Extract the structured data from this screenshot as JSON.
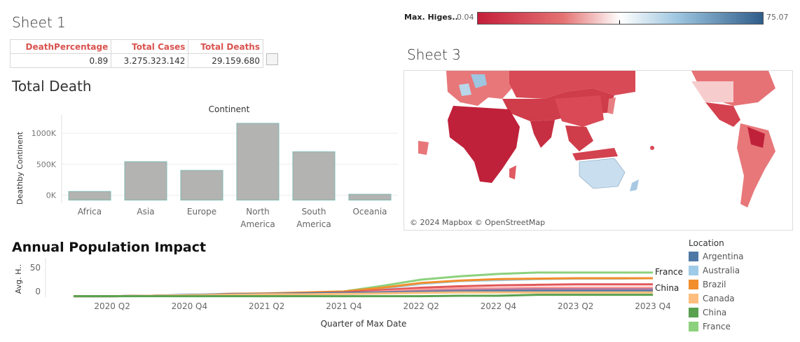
{
  "sheet1": {
    "title": "Sheet 1",
    "headers": [
      "DeathPercentage",
      "Total Cases",
      "Total Deaths"
    ],
    "values": [
      "0.89",
      "3.275.323.142",
      "29.159.680"
    ]
  },
  "colorbar": {
    "label": "Max. Higes..",
    "min_label": "0.04",
    "max_label": "75.07",
    "low_color": "#c41e3a",
    "mid_color": "#ffffff",
    "high_color": "#2f5d8a"
  },
  "sheet3": {
    "title": "Sheet 3",
    "credit": "© 2024 Mapbox © OpenStreetMap"
  },
  "total_death": {
    "title": "Total Death"
  },
  "annual": {
    "title": "Annual Population Impact",
    "legend_title": "Location",
    "legend": [
      {
        "name": "Argentina",
        "color": "#4e79a7"
      },
      {
        "name": "Australia",
        "color": "#a0cbe8"
      },
      {
        "name": "Brazil",
        "color": "#f28e2b"
      },
      {
        "name": "Canada",
        "color": "#ffbe7d"
      },
      {
        "name": "China",
        "color": "#59a14f"
      },
      {
        "name": "France",
        "color": "#8cd17d"
      }
    ],
    "end_labels": [
      "France",
      "China"
    ]
  },
  "chart_data": [
    {
      "type": "bar",
      "title": "Continent",
      "ylabel": "Deathby Continent",
      "categories": [
        "Africa",
        "Asia",
        "Europe",
        "North America",
        "South America",
        "Oceania"
      ],
      "category_lines": [
        [
          "Africa"
        ],
        [
          "Asia"
        ],
        [
          "Europe"
        ],
        [
          "North",
          "America"
        ],
        [
          "South",
          "America"
        ],
        [
          "Oceania"
        ]
      ],
      "values": [
        60000,
        540000,
        400000,
        1160000,
        700000,
        15000
      ],
      "ylim": [
        -130000,
        1250000
      ],
      "yticks": [
        0,
        500000,
        1000000
      ],
      "ytick_labels": [
        "0K",
        "500K",
        "1000K"
      ],
      "bar_color": "#b3b3b1",
      "bar_edge": "#7fb8b3"
    },
    {
      "type": "line",
      "xlabel": "Quarter of Max Date",
      "ylabel": "Avg. H..",
      "x_ticks": [
        "2020 Q2",
        "2020 Q4",
        "2021 Q2",
        "2021 Q4",
        "2022 Q2",
        "2022 Q4",
        "2023 Q2",
        "2023 Q4"
      ],
      "x": [
        "2020 Q1",
        "2020 Q2",
        "2020 Q3",
        "2020 Q4",
        "2021 Q1",
        "2021 Q2",
        "2021 Q3",
        "2021 Q4",
        "2022 Q1",
        "2022 Q2",
        "2022 Q3",
        "2022 Q4",
        "2023 Q1",
        "2023 Q2",
        "2023 Q3",
        "2023 Q4"
      ],
      "yticks": [
        0,
        50
      ],
      "ylim": [
        -12,
        62
      ],
      "series": [
        {
          "name": "France",
          "color": "#8cd17d",
          "values": [
            -10,
            -10,
            -9,
            -8,
            -6,
            -5,
            -3,
            0,
            12,
            25,
            32,
            37,
            40,
            40,
            40,
            40
          ]
        },
        {
          "name": "Australia",
          "color": "#a0cbe8",
          "values": [
            -10,
            -10,
            -9,
            -8,
            -6,
            -5,
            -3,
            -1,
            6,
            16,
            22,
            24,
            26,
            27,
            27,
            28
          ]
        },
        {
          "color": "#f28e2b",
          "values": [
            -10,
            -10,
            -9,
            -8,
            -5,
            -4,
            -2,
            0,
            8,
            18,
            23,
            26,
            27,
            28,
            28,
            28
          ]
        },
        {
          "color": "#e15759",
          "values": [
            -10,
            -10,
            -9,
            -8,
            -6,
            -5,
            -4,
            -2,
            3,
            8,
            11,
            13,
            14,
            15,
            15,
            15
          ]
        },
        {
          "color": "#ff9d9a",
          "values": [
            -10,
            -10,
            -9,
            -8,
            -7,
            -6,
            -5,
            -4,
            0,
            4,
            6,
            7,
            8,
            8,
            8,
            8
          ]
        },
        {
          "color": "#b07aa1",
          "values": [
            -10,
            -10,
            -9,
            -8,
            -7,
            -6,
            -5,
            -4,
            -2,
            1,
            3,
            4,
            5,
            5,
            5,
            5
          ]
        },
        {
          "name": "Argentina",
          "color": "#4e79a7",
          "values": [
            -10,
            -10,
            -9,
            -7,
            -6,
            -5,
            -4,
            -3,
            -2,
            -1,
            0,
            1,
            1,
            1,
            1,
            1
          ]
        },
        {
          "name": "Canada",
          "color": "#ffbe7d",
          "values": [
            -10,
            -10,
            -9,
            -8,
            -7,
            -6,
            -6,
            -5,
            -4,
            -3,
            -2,
            -2,
            -2,
            -2,
            -2,
            -2
          ]
        },
        {
          "name": "China",
          "color": "#59a14f",
          "values": [
            -10,
            -10,
            -10,
            -10,
            -10,
            -10,
            -10,
            -10,
            -10,
            -10,
            -9,
            -9,
            -7,
            -7,
            -7,
            -7
          ]
        }
      ]
    }
  ]
}
